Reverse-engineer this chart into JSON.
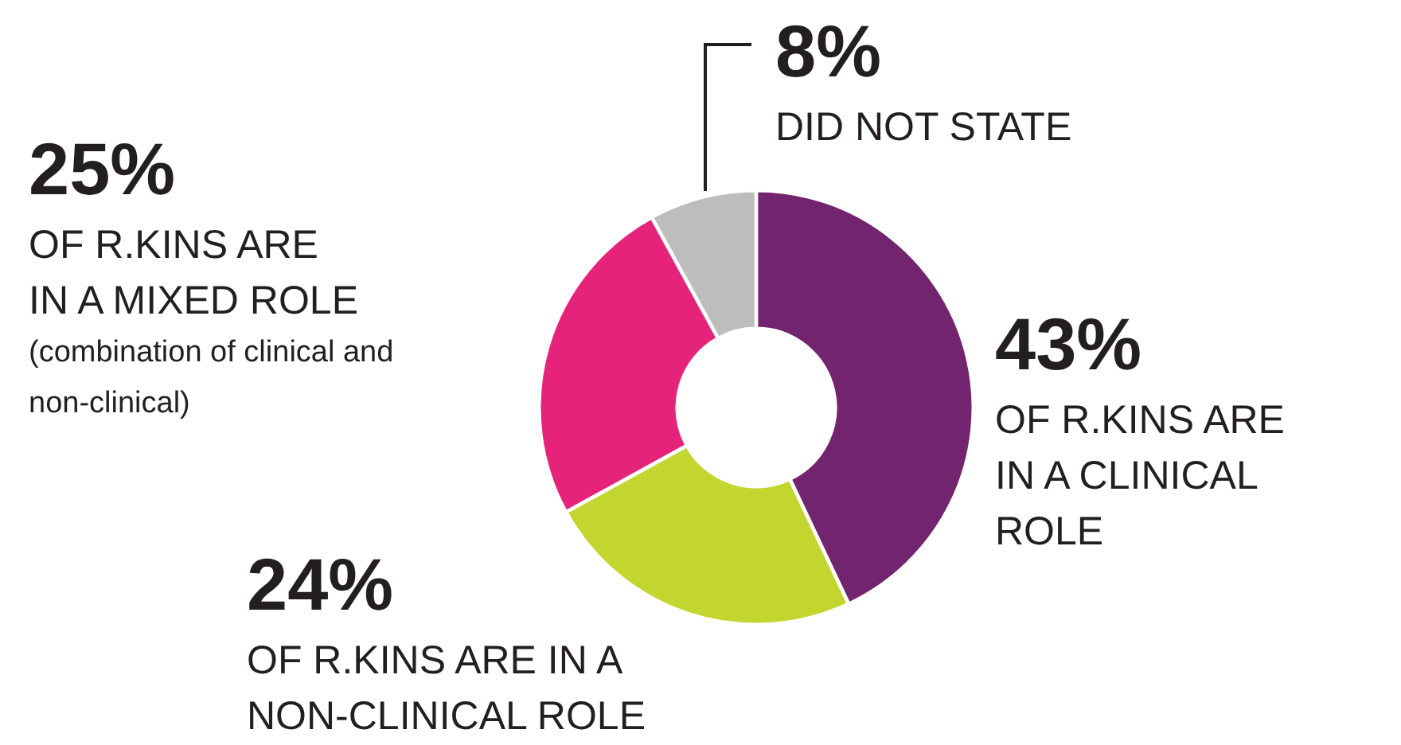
{
  "chart_data": {
    "type": "donut",
    "categories": [
      "OF R.KINS ARE IN A CLINICAL ROLE",
      "OF R.KINS ARE IN A NON-CLINICAL ROLE",
      "OF R.KINS ARE IN A MIXED ROLE",
      "DID NOT STATE"
    ],
    "values": [
      43,
      24,
      25,
      8
    ],
    "value_labels": [
      "43%",
      "24%",
      "25%",
      "8%"
    ],
    "colors": [
      "#73246e",
      "#c3d52f",
      "#e6237a",
      "#bdbdbd"
    ],
    "annotations": [
      "(combination of clinical and non-clinical)"
    ]
  }
}
